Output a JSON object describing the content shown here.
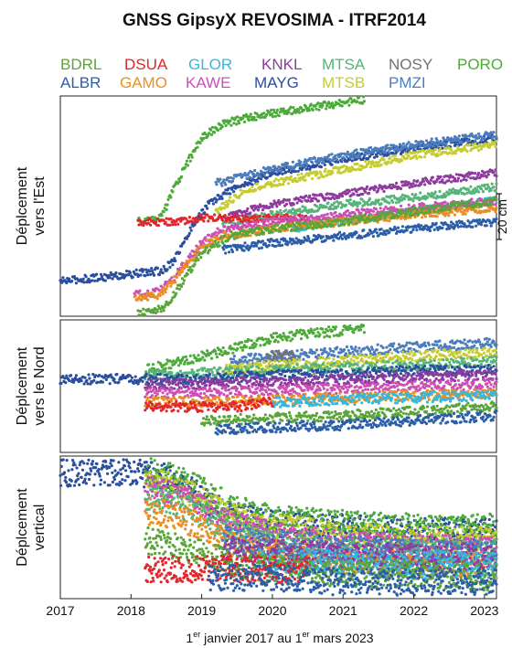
{
  "chart_data": {
    "type": "scatter",
    "title": "GNSS GipsyX REVOSIMA - ITRF2014",
    "xlabel": {
      "sup1": "er",
      "mid": " janvier 2017 au 1",
      "sup2": "er",
      "end": " mars 2023",
      "lead1": "1",
      "full": "1er janvier 2017 au 1er mars 2023"
    },
    "x_range": [
      2017.0,
      2023.17
    ],
    "x_ticks": [
      "2017",
      "2018",
      "2019",
      "2020",
      "2021",
      "2022",
      "2023"
    ],
    "scale_bar_label": "20 cm",
    "scale_bar_cm": 20,
    "legend": [
      {
        "name": "BDRL",
        "color": "#5aa53a"
      },
      {
        "name": "DSUA",
        "color": "#e2262b"
      },
      {
        "name": "GLOR",
        "color": "#37b7dc"
      },
      {
        "name": "KNKL",
        "color": "#8e3a9e"
      },
      {
        "name": "MTSA",
        "color": "#55b47a"
      },
      {
        "name": "NOSY",
        "color": "#707278"
      },
      {
        "name": "PORO",
        "color": "#4caa38"
      },
      {
        "name": "ALBR",
        "color": "#2b5ea8"
      },
      {
        "name": "GAMO",
        "color": "#ea8f22"
      },
      {
        "name": "KAWE",
        "color": "#cc4fb5"
      },
      {
        "name": "MAYG",
        "color": "#2b4e9e"
      },
      {
        "name": "MTSB",
        "color": "#c5cc32"
      },
      {
        "name": "PMZI",
        "color": "#4b7dbd"
      }
    ],
    "panels": [
      {
        "id": "est",
        "ylabel": [
          "Déplcement",
          "vers l'Est"
        ],
        "y_unit": "cm",
        "y_range": [
          -8,
          55
        ],
        "series": [
          {
            "name": "MAYG",
            "color": "#2b4e9e",
            "x": [
              2017.0,
              2018.0,
              2018.45,
              2018.6,
              2018.75,
              2018.9,
              2019.1,
              2019.4,
              2020.0,
              2021.0,
              2022.0,
              2023.17
            ],
            "y": [
              2,
              4,
              5,
              8,
              13,
              19,
              24,
              28,
              33,
              37,
              40,
              43
            ]
          },
          {
            "name": "PORO",
            "color": "#4caa38",
            "x": [
              2018.1,
              2018.45,
              2018.6,
              2018.8,
              2019.0,
              2019.3,
              2019.7,
              2020.0,
              2021.3
            ],
            "y": [
              19,
              21,
              28,
              36,
              43,
              47,
              49,
              50,
              54
            ]
          },
          {
            "name": "PMZI",
            "color": "#4b7dbd",
            "x": [
              2019.2,
              2020.0,
              2021.0,
              2022.0,
              2023.17
            ],
            "y": [
              30,
              34,
              38,
              41,
              44
            ]
          },
          {
            "name": "MTSB",
            "color": "#c5cc32",
            "x": [
              2019.2,
              2019.6,
              2020.0,
              2021.0,
              2022.0,
              2023.17
            ],
            "y": [
              22,
              28,
              30,
              34,
              38,
              41
            ]
          },
          {
            "name": "KNKL",
            "color": "#8e3a9e",
            "x": [
              2019.3,
              2020.0,
              2021.0,
              2022.0,
              2023.17
            ],
            "y": [
              20,
              24,
              27,
              30,
              33
            ]
          },
          {
            "name": "MTSA",
            "color": "#55b47a",
            "x": [
              2019.3,
              2020.0,
              2021.0,
              2022.0,
              2023.17
            ],
            "y": [
              18,
              21,
              24,
              26,
              29
            ]
          },
          {
            "name": "GLOR",
            "color": "#37b7dc",
            "x": [
              2020.3,
              2021.0,
              2022.0,
              2023.17
            ],
            "y": [
              17,
              19,
              22,
              25
            ]
          },
          {
            "name": "DSUA",
            "color": "#e2262b",
            "x": [
              2018.1,
              2018.5,
              2019.0,
              2019.5,
              2020.0,
              2020.5
            ],
            "y": [
              19,
              19,
              20,
              20,
              20,
              20
            ]
          },
          {
            "name": "KAWE",
            "color": "#cc4fb5",
            "x": [
              2018.05,
              2018.4,
              2018.6,
              2018.8,
              2019.0,
              2019.3,
              2020.0,
              2021.0,
              2022.0,
              2023.17
            ],
            "y": [
              -2,
              -1,
              3,
              8,
              13,
              17,
              19,
              21,
              23,
              25
            ]
          },
          {
            "name": "GAMO",
            "color": "#ea8f22",
            "x": [
              2018.05,
              2018.4,
              2018.6,
              2018.8,
              2019.0,
              2019.3,
              2020.0,
              2021.0,
              2022.0,
              2023.17
            ],
            "y": [
              -3,
              -2,
              2,
              7,
              12,
              15,
              17,
              19,
              21,
              23
            ]
          },
          {
            "name": "BDRL",
            "color": "#5aa53a",
            "x": [
              2018.1,
              2018.45,
              2018.6,
              2018.8,
              2019.0,
              2019.4,
              2020.0,
              2021.0,
              2022.0,
              2023.17
            ],
            "y": [
              -7,
              -6,
              -2,
              4,
              10,
              15,
              17,
              19,
              22,
              25
            ]
          },
          {
            "name": "ALBR",
            "color": "#2b5ea8",
            "x": [
              2019.3,
              2020.0,
              2021.0,
              2022.0,
              2023.17
            ],
            "y": [
              11,
              13,
              15,
              17,
              19
            ]
          }
        ]
      },
      {
        "id": "nord",
        "ylabel": [
          "Déplcement",
          "vers le Nord"
        ],
        "y_unit": "cm",
        "y_range": [
          -17,
          12
        ],
        "series": [
          {
            "name": "PORO",
            "color": "#4caa38",
            "x": [
              2018.2,
              2019.0,
              2019.5,
              2020.0,
              2020.5,
              2021.3
            ],
            "y": [
              1,
              4,
              6,
              8,
              9,
              10
            ]
          },
          {
            "name": "PMZI",
            "color": "#4b7dbd",
            "x": [
              2019.4,
              2020.0,
              2021.0,
              2022.0,
              2023.17
            ],
            "y": [
              3,
              4,
              5,
              6,
              7
            ]
          },
          {
            "name": "NOSY",
            "color": "#707278",
            "x": [
              2019.9,
              2020.3
            ],
            "y": [
              4,
              4
            ]
          },
          {
            "name": "MTSB",
            "color": "#c5cc32",
            "x": [
              2019.3,
              2020.0,
              2021.0,
              2022.0,
              2023.17
            ],
            "y": [
              1,
              2,
              3,
              4,
              5
            ]
          },
          {
            "name": "MTSA",
            "color": "#55b47a",
            "x": [
              2018.2,
              2019.0,
              2020.0,
              2021.0,
              2022.0,
              2023.17
            ],
            "y": [
              0,
              0.3,
              1,
              1.5,
              2,
              3
            ]
          },
          {
            "name": "MAYG",
            "color": "#2b4e9e",
            "x": [
              2017.0,
              2018.0,
              2019.0,
              2020.0,
              2021.0,
              2022.0,
              2023.17
            ],
            "y": [
              -1,
              -1,
              -1,
              0,
              0,
              1,
              1
            ]
          },
          {
            "name": "KNKL",
            "color": "#8e3a9e",
            "x": [
              2018.2,
              2019.0,
              2020.0,
              2021.0,
              2022.0,
              2023.17
            ],
            "y": [
              -2,
              -2,
              -1.5,
              -1,
              -0.5,
              0
            ]
          },
          {
            "name": "KAWE",
            "color": "#cc4fb5",
            "x": [
              2018.2,
              2019.0,
              2020.0,
              2021.0,
              2022.0,
              2023.17
            ],
            "y": [
              -4,
              -4,
              -3.5,
              -3,
              -2.5,
              -2
            ]
          },
          {
            "name": "GAMO",
            "color": "#ea8f22",
            "x": [
              2018.2,
              2019.0,
              2020.0,
              2021.0,
              2022.0,
              2023.17
            ],
            "y": [
              -6,
              -6,
              -5.5,
              -5,
              -4.5,
              -4
            ]
          },
          {
            "name": "GLOR",
            "color": "#37b7dc",
            "x": [
              2020.0,
              2021.0,
              2022.0,
              2023.17
            ],
            "y": [
              -6,
              -5.5,
              -5,
              -4.5
            ]
          },
          {
            "name": "DSUA",
            "color": "#e2262b",
            "x": [
              2018.2,
              2019.0,
              2019.5,
              2020.0
            ],
            "y": [
              -7,
              -7,
              -7,
              -6
            ]
          },
          {
            "name": "BDRL",
            "color": "#5aa53a",
            "x": [
              2019.0,
              2020.0,
              2021.0,
              2022.0,
              2023.17
            ],
            "y": [
              -10,
              -9.5,
              -9,
              -8,
              -7
            ]
          },
          {
            "name": "ALBR",
            "color": "#2b5ea8",
            "x": [
              2019.2,
              2020.0,
              2021.0,
              2022.0,
              2023.17
            ],
            "y": [
              -12,
              -11.5,
              -11,
              -10,
              -9
            ]
          }
        ]
      },
      {
        "id": "vertical",
        "ylabel": [
          "Déplcement",
          "vertical"
        ],
        "y_unit": "cm",
        "y_range": [
          -26,
          8
        ],
        "series": [
          {
            "name": "MAYG",
            "color": "#2b4e9e",
            "x": [
              2017.0,
              2018.0,
              2018.4,
              2018.7,
              2019.0,
              2019.4,
              2020.0,
              2021.0,
              2022.0,
              2023.17
            ],
            "y": [
              4,
              4,
              3.5,
              2,
              -2,
              -6,
              -8,
              -9,
              -10,
              -10
            ]
          },
          {
            "name": "PORO",
            "color": "#4caa38",
            "x": [
              2018.2,
              2018.6,
              2019.0,
              2019.4,
              2020.0,
              2021.0,
              2022.0,
              2023.17
            ],
            "y": [
              5,
              3,
              0,
              -4,
              -7,
              -8,
              -9,
              -9
            ]
          },
          {
            "name": "MTSB",
            "color": "#c5cc32",
            "x": [
              2018.2,
              2018.6,
              2019.0,
              2019.4,
              2020.0,
              2021.0,
              2022.0,
              2023.17
            ],
            "y": [
              2,
              1,
              -2,
              -6,
              -9,
              -11,
              -12,
              -12
            ]
          },
          {
            "name": "KAWE",
            "color": "#cc4fb5",
            "x": [
              2018.2,
              2018.6,
              2019.0,
              2019.4,
              2020.0,
              2021.0,
              2022.0,
              2023.17
            ],
            "y": [
              0,
              -1,
              -4,
              -8,
              -11,
              -13,
              -14,
              -14
            ]
          },
          {
            "name": "MTSA",
            "color": "#55b47a",
            "x": [
              2018.2,
              2018.6,
              2019.0,
              2019.4,
              2020.0,
              2021.0,
              2022.0,
              2023.17
            ],
            "y": [
              -2,
              -3,
              -6,
              -10,
              -13,
              -15,
              -15,
              -15
            ]
          },
          {
            "name": "GAMO",
            "color": "#ea8f22",
            "x": [
              2018.2,
              2018.6,
              2019.0,
              2019.4,
              2020.0,
              2021.0,
              2022.0,
              2023.17
            ],
            "y": [
              -5,
              -6,
              -9,
              -13,
              -15,
              -17,
              -18,
              -18
            ]
          },
          {
            "name": "PMZI",
            "color": "#4b7dbd",
            "x": [
              2019.3,
              2020.0,
              2021.0,
              2022.0,
              2023.17
            ],
            "y": [
              -12,
              -13,
              -14,
              -15,
              -15
            ]
          },
          {
            "name": "KNKL",
            "color": "#8e3a9e",
            "x": [
              2019.3,
              2020.0,
              2021.0,
              2022.0,
              2023.17
            ],
            "y": [
              -14,
              -15,
              -16,
              -16,
              -16
            ]
          },
          {
            "name": "GLOR",
            "color": "#37b7dc",
            "x": [
              2019.8,
              2021.0,
              2022.0,
              2023.17
            ],
            "y": [
              -17,
              -17,
              -18,
              -18
            ]
          },
          {
            "name": "BDRL",
            "color": "#5aa53a",
            "x": [
              2018.2,
              2019.0,
              2019.5,
              2020.0,
              2021.0,
              2022.0,
              2023.17
            ],
            "y": [
              -12,
              -15,
              -18,
              -19,
              -20,
              -20,
              -21
            ]
          },
          {
            "name": "DSUA",
            "color": "#e2262b",
            "x": [
              2018.2,
              2018.6,
              2019.0,
              2019.5,
              2020.0,
              2020.5
            ],
            "y": [
              -19,
              -19,
              -19,
              -19,
              -19,
              -19
            ]
          },
          {
            "name": "ALBR",
            "color": "#2b5ea8",
            "x": [
              2019.1,
              2020.0,
              2021.0,
              2022.0,
              2023.17
            ],
            "y": [
              -21,
              -21,
              -22,
              -22,
              -22
            ]
          }
        ]
      }
    ]
  }
}
